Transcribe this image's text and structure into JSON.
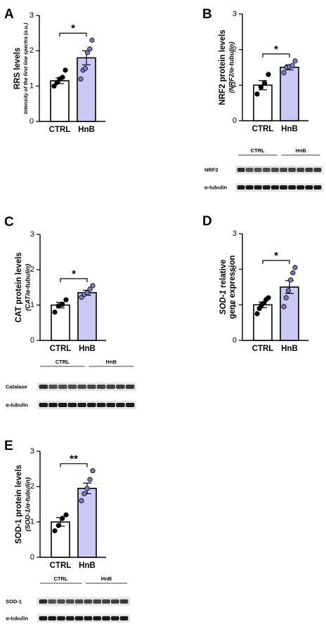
{
  "panels": [
    {
      "letter": "A",
      "ylabel": "RRS levels",
      "ylabel_sub": "Intensity of the  first line spectra (a.u.)",
      "ylabel_italic": false,
      "sig": "*",
      "blot": null
    },
    {
      "letter": "B",
      "ylabel": "NRF2 protein levels",
      "ylabel_sub": "(NRF2/α-tubulin)",
      "ylabel_italic": false,
      "sig": "*",
      "blot": {
        "groups": [
          "CTRL",
          "HnB"
        ],
        "lanes": 10,
        "rows": [
          "NRF2",
          "α-tubulin"
        ]
      }
    },
    {
      "letter": "C",
      "ylabel": "CAT protein levels",
      "ylabel_sub": "(CAT/α-tubulin)",
      "ylabel_italic": false,
      "sig": "*",
      "blot": {
        "groups": [
          "CTRL",
          "HnB"
        ],
        "lanes": 10,
        "rows": [
          "Catalase",
          "α-tubulin"
        ]
      }
    },
    {
      "letter": "D",
      "ylabel_italic_part": "SOD-1",
      "ylabel": " relative",
      "ylabel_sub": "gene expression",
      "ylabel_italic": true,
      "sig": "*",
      "blot": null
    },
    {
      "letter": "E",
      "ylabel": "SOD-1 protein levels",
      "ylabel_sub": "(SOD-1/α-tubulin)",
      "ylabel_italic": false,
      "sig": "**",
      "blot": {
        "groups": [
          "CTRL",
          "HnB"
        ],
        "lanes": 10,
        "rows": [
          "SOD-1",
          "α-tubulin"
        ]
      }
    }
  ],
  "colors": {
    "ctrl_bar": "#ffffff",
    "hnb_bar": "#c9c9f4",
    "hnb_point": "#7a78c8",
    "axis": "#000000"
  },
  "chart_data": [
    {
      "type": "bar",
      "panel": "A",
      "categories": [
        "CTRL",
        "HnB"
      ],
      "ylim": [
        0,
        3
      ],
      "yticks": [
        0,
        1,
        2,
        3
      ],
      "series": [
        {
          "values": [
            1.15,
            1.8
          ],
          "sem": [
            0.08,
            0.2
          ]
        }
      ],
      "points": [
        [
          1.0,
          1.1,
          1.2,
          1.25,
          1.45
        ],
        [
          1.2,
          1.45,
          1.5,
          1.95,
          2.05,
          2.3
        ]
      ],
      "ylabel": "RRS levels"
    },
    {
      "type": "bar",
      "panel": "B",
      "categories": [
        "CTRL",
        "HnB"
      ],
      "ylim": [
        0,
        3
      ],
      "yticks": [
        0,
        1,
        2,
        3
      ],
      "series": [
        {
          "values": [
            1.0,
            1.5
          ],
          "sem": [
            0.13,
            0.07
          ]
        }
      ],
      "points": [
        [
          0.75,
          0.95,
          1.05,
          1.3
        ],
        [
          1.35,
          1.5,
          1.52,
          1.55,
          1.68
        ]
      ],
      "ylabel": "NRF2 protein levels"
    },
    {
      "type": "bar",
      "panel": "C",
      "categories": [
        "CTRL",
        "HnB"
      ],
      "ylim": [
        0,
        3
      ],
      "yticks": [
        0,
        1,
        2,
        3
      ],
      "series": [
        {
          "values": [
            1.0,
            1.35
          ],
          "sem": [
            0.08,
            0.07
          ]
        }
      ],
      "points": [
        [
          0.8,
          0.98,
          1.02,
          1.15
        ],
        [
          1.22,
          1.3,
          1.35,
          1.45,
          1.55
        ]
      ],
      "ylabel": "CAT protein levels"
    },
    {
      "type": "bar",
      "panel": "D",
      "categories": [
        "CTRL",
        "HnB"
      ],
      "ylim": [
        0,
        3
      ],
      "yticks": [
        0,
        1,
        2,
        3
      ],
      "series": [
        {
          "values": [
            1.0,
            1.5
          ],
          "sem": [
            0.08,
            0.18
          ]
        }
      ],
      "points": [
        [
          0.75,
          0.9,
          1.0,
          1.05,
          1.15,
          1.2
        ],
        [
          0.95,
          1.2,
          1.4,
          1.7,
          1.9,
          2.05
        ]
      ],
      "ylabel": "SOD-1 relative gene expression"
    },
    {
      "type": "bar",
      "panel": "E",
      "categories": [
        "CTRL",
        "HnB"
      ],
      "ylim": [
        0,
        3
      ],
      "yticks": [
        0,
        1,
        2,
        3
      ],
      "series": [
        {
          "values": [
            1.0,
            1.95
          ],
          "sem": [
            0.12,
            0.15
          ]
        }
      ],
      "points": [
        [
          0.75,
          0.9,
          1.1,
          1.2
        ],
        [
          1.6,
          1.8,
          1.95,
          2.2,
          2.45
        ]
      ],
      "ylabel": "SOD-1 protein levels"
    }
  ]
}
